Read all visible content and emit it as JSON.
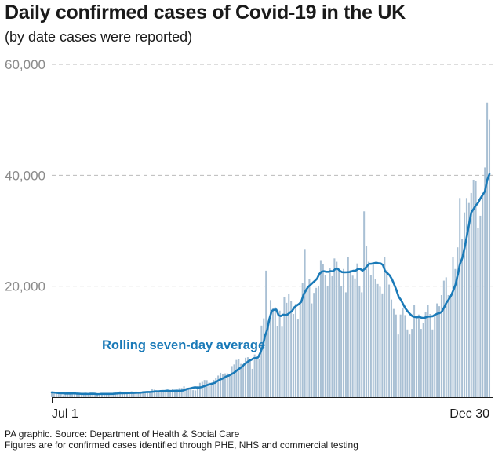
{
  "title": "Daily confirmed cases of Covid-19 in the UK",
  "subtitle": "(by date cases were reported)",
  "footer": {
    "source": "PA graphic. Source: Department of Health & Social Care",
    "note": "Figures are for confirmed cases identified through PHE, NHS and commercial testing"
  },
  "colors": {
    "bars": "#a9c0d4",
    "line": "#1a7ab8",
    "gridline": "#bbbbbb",
    "annotation": "#1a7ab8"
  },
  "chart_data": {
    "type": "bar",
    "x_start": "2020-07-01",
    "x_end": "2020-12-30",
    "xtick_labels": [
      "Jul 1",
      "Dec 30"
    ],
    "ylim": [
      0,
      60000
    ],
    "yticks": [
      20000,
      40000,
      60000
    ],
    "ytick_labels": [
      "20,000",
      "40,000",
      "60,000"
    ],
    "grid": true,
    "annotation": "Rolling seven-day average",
    "series": [
      {
        "type": "bar",
        "values": [
          810,
          620,
          570,
          620,
          520,
          350,
          580,
          630,
          640,
          660,
          820,
          600,
          450,
          510,
          540,
          700,
          650,
          820,
          730,
          590,
          440,
          640,
          760,
          770,
          750,
          770,
          620,
          680,
          780,
          900,
          1050,
          960,
          960,
          740,
          760,
          1050,
          900,
          1010,
          760,
          920,
          1100,
          1030,
          1050,
          1010,
          1420,
          1350,
          1180,
          910,
          1160,
          1190,
          1180,
          990,
          1230,
          1490,
          930,
          1360,
          1650,
          1650,
          1950,
          1680,
          1680,
          1740,
          1260,
          1210,
          1940,
          2580,
          2760,
          3090,
          3070,
          2620,
          2600,
          3120,
          3500,
          3900,
          4400,
          4100,
          4300,
          4300,
          3900,
          5600,
          5900,
          6700,
          6800,
          6000,
          5600,
          7100,
          7200,
          6800,
          5100,
          7700,
          7100,
          6800,
          12900,
          14200,
          22800,
          13800,
          17500,
          16000,
          16200,
          12800,
          15600,
          12700,
          18100,
          17000,
          18600,
          17400,
          15000,
          16800,
          14000,
          17200,
          20600,
          26700,
          19700,
          21300,
          16900,
          18800,
          19700,
          20100,
          24700,
          24000,
          22000,
          20100,
          23300,
          21800,
          25000,
          24400,
          23000,
          20000,
          23100,
          18900,
          25200,
          22900,
          21900,
          21400,
          24100,
          20100,
          18900,
          33500,
          27300,
          24400,
          22000,
          24000,
          21300,
          20400,
          19900,
          18700,
          25300,
          22900,
          20300,
          17600,
          15900,
          14900,
          11300,
          14900,
          16000,
          14800,
          12200,
          11300,
          12300,
          16600,
          14600,
          14900,
          12300,
          13400,
          15400,
          16600,
          15000,
          12200,
          14900,
          16900,
          16400,
          18400,
          21000,
          21600,
          18400,
          18100,
          25200,
          23100,
          27000,
          35900,
          28500,
          33300,
          35900,
          35000,
          36800,
          39200,
          39000,
          30500,
          32700,
          36800,
          41400,
          53100,
          50000
        ]
      },
      {
        "type": "line",
        "values": [
          860,
          829,
          786,
          749,
          716,
          701,
          657,
          659,
          667,
          678,
          704,
          639,
          625,
          601,
          588,
          613,
          585,
          612,
          631,
          613,
          546,
          565,
          601,
          594,
          594,
          588,
          593,
          608,
          651,
          671,
          717,
          715,
          714,
          735,
          745,
          769,
          769,
          781,
          799,
          808,
          848,
          887,
          931,
          922,
          955,
          997,
          1050,
          1042,
          1097,
          1107,
          1119,
          1174,
          1133,
          1112,
          1147,
          1158,
          1141,
          1167,
          1215,
          1360,
          1503,
          1573,
          1679,
          1771,
          1749,
          1740,
          1808,
          1942,
          2104,
          2241,
          2348,
          2474,
          2597,
          2892,
          3133,
          3309,
          3491,
          3757,
          3873,
          4107,
          4307,
          4607,
          4931,
          5227,
          5516,
          5964,
          6241,
          6563,
          6734,
          7003,
          7051,
          7166,
          8030,
          9090,
          11006,
          12120,
          14160,
          15543,
          15763,
          15791,
          14771,
          14622,
          14864,
          14812,
          14908,
          15257,
          15549,
          16203,
          16524,
          16781,
          17180,
          18464,
          19213,
          19859,
          20208,
          20600,
          20971,
          21369,
          22207,
          22617,
          22698,
          22596,
          22592,
          22709,
          22689,
          23073,
          23186,
          22786,
          22542,
          22512,
          22521,
          22541,
          22637,
          22780,
          22799,
          23112,
          23122,
          22802,
          23124,
          23616,
          24036,
          24053,
          24134,
          24241,
          24137,
          24107,
          23840,
          22701,
          22352,
          21960,
          21260,
          20306,
          19276,
          18070,
          17514,
          16710,
          15964,
          15442,
          14987,
          14597,
          14474,
          14386,
          14477,
          14330,
          14277,
          14390,
          14521,
          14553,
          14603,
          14860,
          15054,
          15157,
          15413,
          16159,
          17024,
          17594,
          18256,
          19183,
          20254,
          22008,
          24000,
          25059,
          26854,
          28950,
          31171,
          33314,
          33940,
          34554,
          35039,
          35826,
          36457,
          37131,
          39160,
          40201
        ]
      }
    ]
  }
}
